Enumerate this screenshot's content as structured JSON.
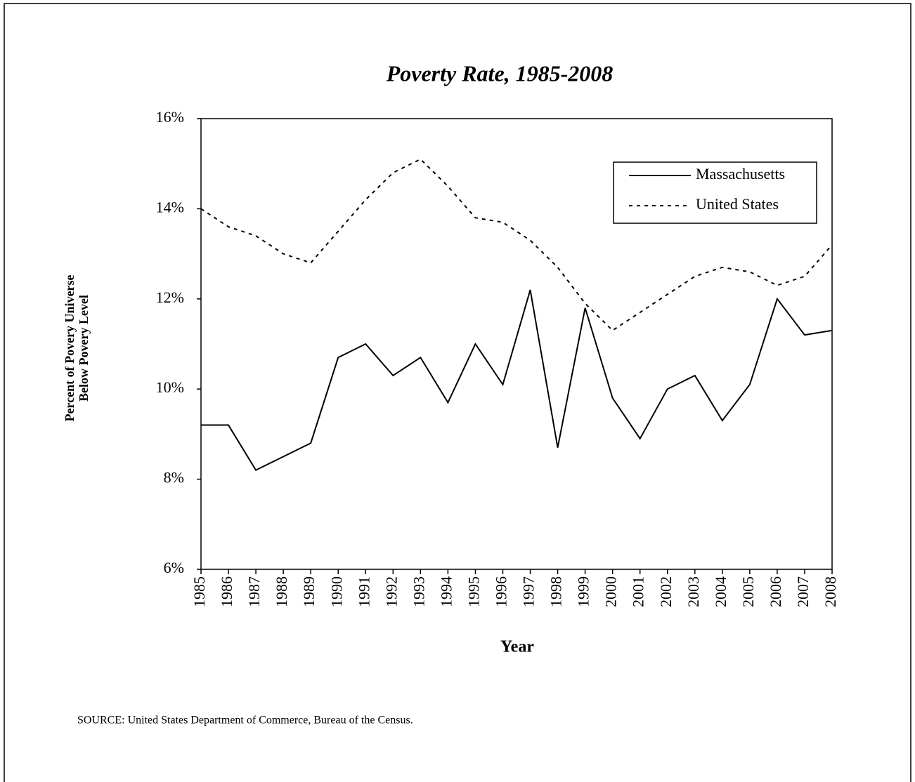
{
  "chart_data": {
    "type": "line",
    "title": "Poverty Rate, 1985-2008",
    "xlabel": "Year",
    "ylabel": [
      "Percent of Povery Universe",
      "Below Povery Level"
    ],
    "source": "SOURCE:  United States Department of Commerce, Bureau of the Census.",
    "categories": [
      "1985",
      "1986",
      "1987",
      "1988",
      "1989",
      "1990",
      "1991",
      "1992",
      "1993",
      "1994",
      "1995",
      "1996",
      "1997",
      "1998",
      "1999",
      "2000",
      "2001",
      "2002",
      "2003",
      "2004",
      "2005",
      "2006",
      "2007",
      "2008"
    ],
    "series": [
      {
        "name": "Massachusetts",
        "color": "#000000",
        "dash": "solid",
        "values": [
          9.2,
          9.2,
          8.2,
          8.5,
          8.8,
          10.7,
          11.0,
          10.3,
          10.7,
          9.7,
          11.0,
          10.1,
          12.2,
          8.7,
          11.8,
          9.8,
          8.9,
          10.0,
          10.3,
          9.3,
          10.1,
          12.0,
          11.2,
          11.3
        ]
      },
      {
        "name": "United States",
        "color": "#000000",
        "dash": "dotted",
        "values": [
          14.0,
          13.6,
          13.4,
          13.0,
          12.8,
          13.5,
          14.2,
          14.8,
          15.1,
          14.5,
          13.8,
          13.7,
          13.3,
          12.7,
          11.9,
          11.3,
          11.7,
          12.1,
          12.5,
          12.7,
          12.6,
          12.3,
          12.5,
          13.2
        ]
      }
    ],
    "ylim": [
      6,
      16
    ],
    "yticks": [
      {
        "value": 6,
        "label": "6%"
      },
      {
        "value": 8,
        "label": "8%"
      },
      {
        "value": 10,
        "label": "10%"
      },
      {
        "value": 12,
        "label": "12%"
      },
      {
        "value": 14,
        "label": "14%"
      },
      {
        "value": 16,
        "label": "16%"
      }
    ],
    "legend": "top-right"
  }
}
